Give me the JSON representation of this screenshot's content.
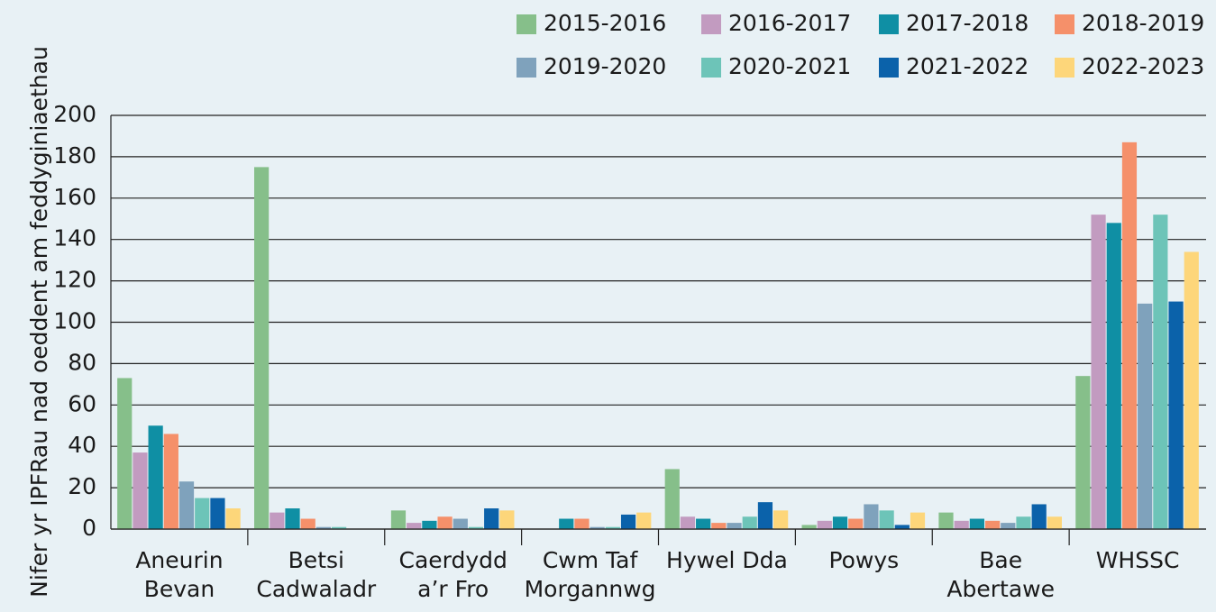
{
  "chart_data": {
    "type": "bar",
    "y_label": "Nifer yr IPFRau nad oeddent am feddyginiaethau",
    "categories": [
      [
        "Aneurin",
        "Bevan"
      ],
      [
        "Betsi",
        "Cadwaladr"
      ],
      [
        "Caerdydd",
        "a’r Fro"
      ],
      [
        "Cwm Taf",
        "Morgannwg"
      ],
      [
        "Hywel Dda"
      ],
      [
        "Powys"
      ],
      [
        "Bae",
        "Abertawe"
      ],
      [
        "WHSSC"
      ]
    ],
    "series": [
      {
        "name": "2015-2016",
        "color": "#86bf8a",
        "values": [
          73,
          175,
          9,
          0,
          29,
          2,
          8,
          74
        ]
      },
      {
        "name": "2016-2017",
        "color": "#c29bc0",
        "values": [
          37,
          8,
          3,
          0,
          6,
          4,
          4,
          152
        ]
      },
      {
        "name": "2017-2018",
        "color": "#0f8fa4",
        "values": [
          50,
          10,
          4,
          5,
          5,
          6,
          5,
          148
        ]
      },
      {
        "name": "2018-2019",
        "color": "#f5906a",
        "values": [
          46,
          5,
          6,
          5,
          3,
          5,
          4,
          187
        ]
      },
      {
        "name": "2019-2020",
        "color": "#7fa2bc",
        "values": [
          23,
          1,
          5,
          1,
          3,
          12,
          3,
          109
        ]
      },
      {
        "name": "2020-2021",
        "color": "#6dc4b8",
        "values": [
          15,
          1,
          1,
          1,
          6,
          9,
          6,
          152
        ]
      },
      {
        "name": "2021-2022",
        "color": "#0b62aa",
        "values": [
          15,
          0,
          10,
          7,
          13,
          2,
          12,
          110
        ]
      },
      {
        "name": "2022-2023",
        "color": "#fdd67a",
        "values": [
          10,
          0,
          9,
          8,
          9,
          8,
          6,
          134
        ]
      }
    ],
    "ylim": [
      0,
      200
    ],
    "yticks": [
      0,
      20,
      40,
      60,
      80,
      100,
      120,
      140,
      160,
      180,
      200
    ],
    "grid": true
  }
}
